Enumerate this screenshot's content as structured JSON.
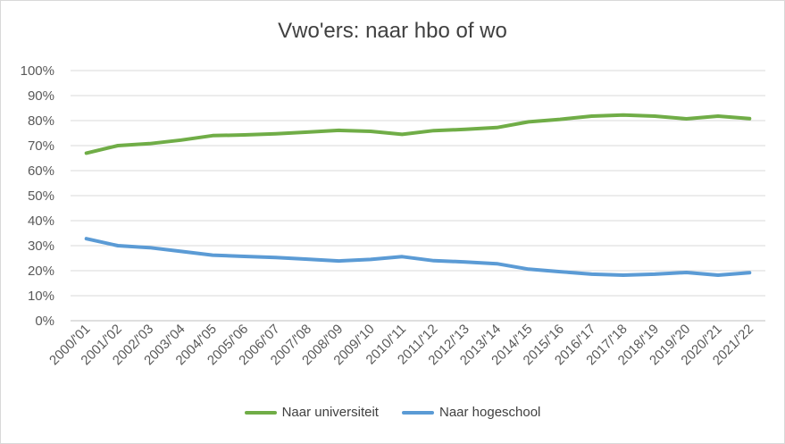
{
  "chart_data": {
    "type": "line",
    "title": "Vwo'ers: naar hbo of wo",
    "xlabel": "",
    "ylabel": "",
    "ylim": [
      0,
      100
    ],
    "y_ticks": [
      "0%",
      "10%",
      "20%",
      "30%",
      "40%",
      "50%",
      "60%",
      "70%",
      "80%",
      "90%",
      "100%"
    ],
    "grid": true,
    "legend_position": "bottom",
    "categories": [
      "2000/'01",
      "2001/'02",
      "2002/'03",
      "2003/'04",
      "2004/'05",
      "2005/'06",
      "2006/'07",
      "2007/'08",
      "2008/'09",
      "2009/'10",
      "2010/'11",
      "2011/'12",
      "2012/'13",
      "2013/'14",
      "2014/'15",
      "2015/'16",
      "2016/'17",
      "2017/'18",
      "2018/'19",
      "2019/'20",
      "2020/'21",
      "2021/'22"
    ],
    "series": [
      {
        "name": "Naar universiteit",
        "color": "#70ad47",
        "values": [
          67,
          70,
          70.8,
          72.2,
          74,
          74.3,
          74.7,
          75.4,
          76.1,
          75.7,
          74.5,
          76,
          76.5,
          77.2,
          79.5,
          80.5,
          81.8,
          82.2,
          81.8,
          80.7,
          81.8,
          80.8
        ]
      },
      {
        "name": "Naar hogeschool",
        "color": "#5b9bd5",
        "values": [
          32.8,
          30,
          29.2,
          27.7,
          26.2,
          25.7,
          25.3,
          24.6,
          23.9,
          24.5,
          25.6,
          24,
          23.5,
          22.8,
          20.6,
          19.6,
          18.6,
          18.2,
          18.6,
          19.3,
          18.2,
          19.2
        ]
      }
    ]
  }
}
